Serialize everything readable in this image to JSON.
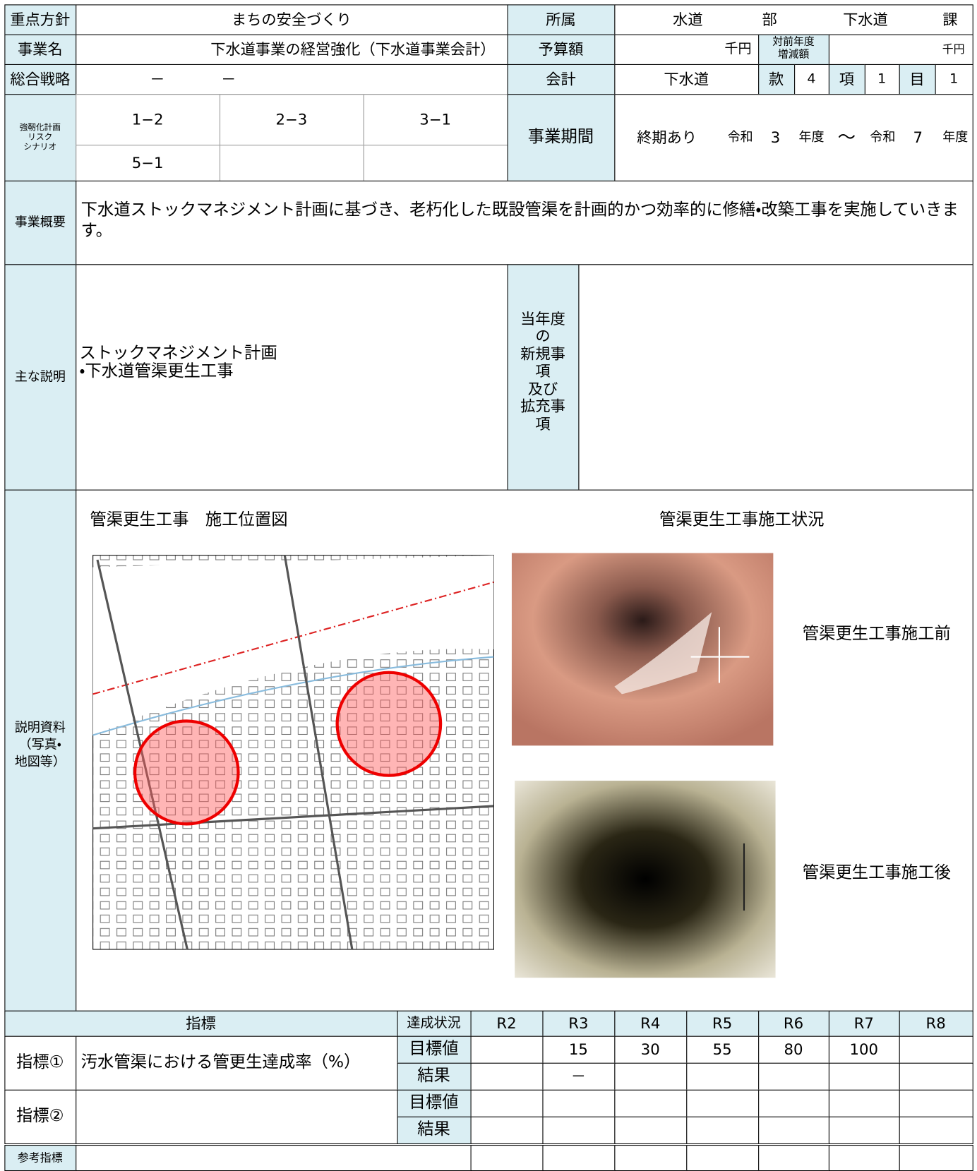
{
  "header": {
    "policy_label": "重点方針",
    "policy": "まちの安全づくり",
    "dept_label": "所属",
    "dept": "水道",
    "dept_unit": "部",
    "section": "下水道",
    "section_unit": "課"
  },
  "project": {
    "name_label": "事業名",
    "name": "下水道事業の経営強化（下水道事業会計）",
    "budget_label": "予算額",
    "budget_unit": "千円",
    "change_label_lines": [
      "対前年度",
      "増減額"
    ],
    "change_unit": "千円"
  },
  "strategy": {
    "label": "総合戦略",
    "values": [
      "－",
      "－"
    ],
    "account_label": "会計",
    "account": "下水道",
    "kan_label": "款",
    "kan": "4",
    "kou_label": "項",
    "kou": "1",
    "moku_label": "目",
    "moku": "1"
  },
  "resilience": {
    "label_lines": [
      "強靭化計画",
      "リスク",
      "シナリオ"
    ],
    "scenarios": [
      "1−2",
      "2−3",
      "3−1",
      "5−1"
    ]
  },
  "period": {
    "label": "事業期間",
    "type": "終期あり",
    "start_era": "令和",
    "start_year": "3",
    "start_unit": "年度",
    "sep": "〜",
    "end_era": "令和",
    "end_year": "7",
    "end_unit": "年度"
  },
  "summary": {
    "label": "事業概要",
    "text": "下水道ストックマネジメント計画に基づき、老朽化した既設管渠を計画的かつ効率的に修繕・改築工事を実施していきます。"
  },
  "description": {
    "label": "主な説明",
    "lines": [
      "ストックマネジメント計画",
      "・下水道管渠更生工事"
    ],
    "new_label_lines": [
      "当年度",
      "の",
      "新規事",
      "項",
      "及び",
      "拡充事",
      "項"
    ]
  },
  "materials": {
    "label_lines": [
      "説明資料",
      "（写真・",
      "地図等）"
    ],
    "map_title": "管渠更生工事　施工位置図",
    "photo_title": "管渠更生工事施工状況",
    "before": "管渠更生工事施工前",
    "after": "管渠更生工事施工後"
  },
  "indicators": {
    "header": "指標",
    "status": "達成状況",
    "years": [
      "R2",
      "R3",
      "R4",
      "R5",
      "R6",
      "R7",
      "R8"
    ],
    "rows": [
      {
        "label": "指標①",
        "name": "汚水管渠における管更生達成率（%）",
        "target_label": "目標値",
        "target": [
          null,
          "15",
          "30",
          "55",
          "80",
          "100",
          null
        ],
        "result_label": "結果",
        "result": [
          null,
          "－",
          null,
          null,
          null,
          null,
          null
        ]
      },
      {
        "label": "指標②",
        "target_label": "目標値",
        "result_label": "結果"
      }
    ],
    "reference": "参考指標"
  }
}
